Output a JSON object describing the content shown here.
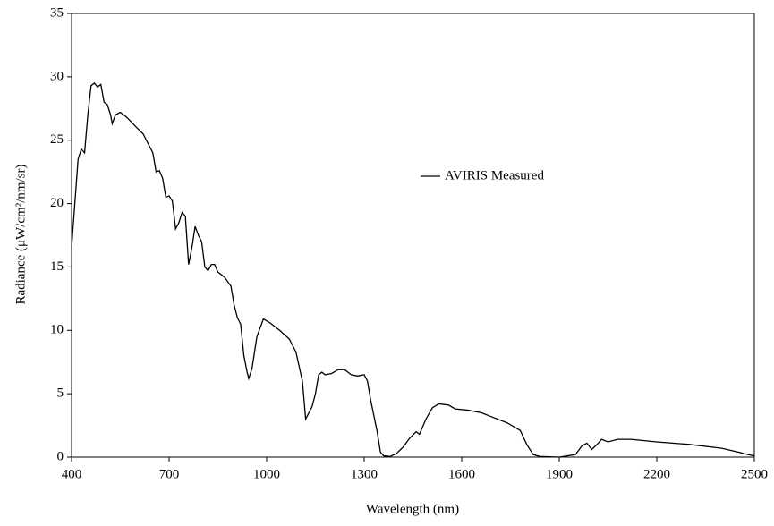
{
  "chart_data": {
    "type": "line",
    "xlabel": "Wavelength (nm)",
    "ylabel": "Radiance (μW/cm²/nm/sr)",
    "xlim": [
      400,
      2500
    ],
    "xticks": [
      400,
      700,
      1000,
      1300,
      1600,
      1900,
      2200,
      2500
    ],
    "ylim": [
      0,
      35
    ],
    "yticks": [
      0,
      5,
      10,
      15,
      20,
      25,
      30,
      35
    ],
    "legend": "right",
    "series": [
      {
        "name": "AVIRIS Measured",
        "color": "#000000",
        "x": [
          400,
          410,
          420,
          430,
          440,
          450,
          460,
          470,
          480,
          490,
          500,
          510,
          520,
          525,
          535,
          550,
          570,
          600,
          620,
          640,
          650,
          660,
          670,
          680,
          690,
          700,
          710,
          720,
          730,
          740,
          750,
          760,
          770,
          780,
          790,
          800,
          810,
          820,
          830,
          840,
          850,
          870,
          890,
          900,
          910,
          920,
          930,
          940,
          945,
          955,
          970,
          990,
          1010,
          1040,
          1070,
          1090,
          1110,
          1120,
          1130,
          1140,
          1150,
          1160,
          1170,
          1180,
          1200,
          1220,
          1240,
          1260,
          1280,
          1300,
          1310,
          1320,
          1340,
          1350,
          1360,
          1380,
          1400,
          1420,
          1440,
          1460,
          1470,
          1490,
          1510,
          1530,
          1560,
          1580,
          1620,
          1660,
          1700,
          1740,
          1780,
          1800,
          1820,
          1840,
          1900,
          1950,
          1970,
          1985,
          2000,
          2020,
          2030,
          2050,
          2080,
          2120,
          2200,
          2300,
          2400,
          2450,
          2480,
          2500
        ],
        "values": [
          16.5,
          20,
          23.5,
          24.3,
          24,
          27,
          29.3,
          29.5,
          29.2,
          29.4,
          28,
          27.8,
          27,
          26.3,
          27,
          27.2,
          26.8,
          26,
          25.5,
          24.5,
          24,
          22.5,
          22.6,
          22,
          20.5,
          20.6,
          20.2,
          18,
          18.5,
          19.3,
          19,
          15.2,
          16.5,
          18.2,
          17.5,
          17,
          15,
          14.7,
          15.2,
          15.2,
          14.6,
          14.2,
          13.5,
          12,
          11,
          10.5,
          8,
          6.7,
          6.2,
          7,
          9.5,
          10.9,
          10.6,
          10,
          9.3,
          8.3,
          6,
          3,
          3.5,
          4,
          5,
          6.5,
          6.7,
          6.5,
          6.6,
          6.9,
          6.9,
          6.5,
          6.4,
          6.5,
          6,
          4.5,
          2,
          0.4,
          0.1,
          0.05,
          0.3,
          0.8,
          1.5,
          2,
          1.8,
          3,
          3.9,
          4.2,
          4.1,
          3.8,
          3.7,
          3.5,
          3.1,
          2.7,
          2.1,
          1,
          0.2,
          0.05,
          0,
          0.2,
          0.9,
          1.1,
          0.6,
          1.1,
          1.4,
          1.2,
          1.4,
          1.4,
          1.2,
          1,
          0.7,
          0.4,
          0.2,
          0.1
        ]
      }
    ]
  }
}
